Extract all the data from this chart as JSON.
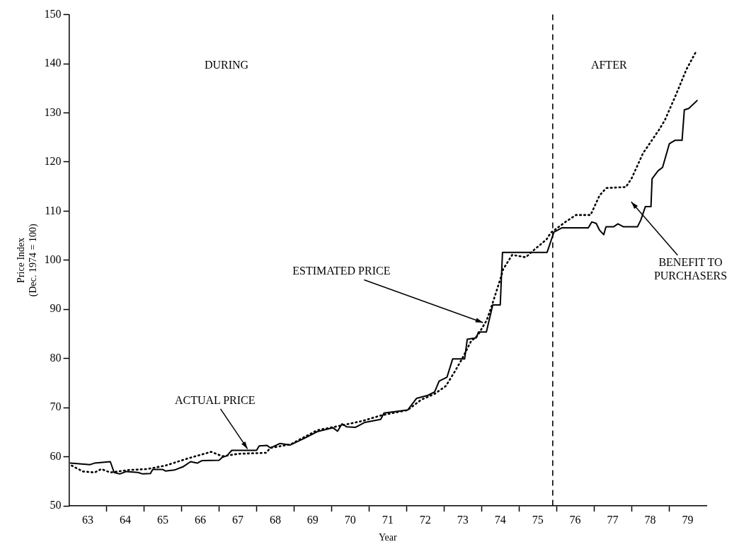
{
  "chart_data": {
    "type": "line",
    "xlabel": "Year",
    "ylabel": "Price Index\n(Dec. 1974 = 100)",
    "xlim": [
      63,
      80
    ],
    "xticks": [
      {
        "value": 63.5,
        "label": "63"
      },
      {
        "value": 64.5,
        "label": "64"
      },
      {
        "value": 65.5,
        "label": "65"
      },
      {
        "value": 66.5,
        "label": "66"
      },
      {
        "value": 67.5,
        "label": "67"
      },
      {
        "value": 68.5,
        "label": "68"
      },
      {
        "value": 69.5,
        "label": "69"
      },
      {
        "value": 70.5,
        "label": "70"
      },
      {
        "value": 71.5,
        "label": "71"
      },
      {
        "value": 72.5,
        "label": "72"
      },
      {
        "value": 73.5,
        "label": "73"
      },
      {
        "value": 74.5,
        "label": "74"
      },
      {
        "value": 75.5,
        "label": "75"
      },
      {
        "value": 76.5,
        "label": "76"
      },
      {
        "value": 77.5,
        "label": "77"
      },
      {
        "value": 78.5,
        "label": "78"
      },
      {
        "value": 79.5,
        "label": "79"
      },
      {
        "value": 64,
        "label": null
      },
      {
        "value": 65,
        "label": null
      },
      {
        "value": 66,
        "label": null
      },
      {
        "value": 67,
        "label": null
      },
      {
        "value": 68,
        "label": null
      },
      {
        "value": 69,
        "label": null
      },
      {
        "value": 70,
        "label": null
      },
      {
        "value": 71,
        "label": null
      },
      {
        "value": 72,
        "label": null
      },
      {
        "value": 73,
        "label": null
      },
      {
        "value": 74,
        "label": null
      },
      {
        "value": 75,
        "label": null
      },
      {
        "value": 76,
        "label": null
      },
      {
        "value": 77,
        "label": null
      },
      {
        "value": 78,
        "label": null
      },
      {
        "value": 79,
        "label": null
      }
    ],
    "ylim": [
      50,
      150
    ],
    "yticks": [
      50,
      60,
      70,
      80,
      90,
      100,
      110,
      120,
      130,
      140,
      150
    ],
    "grid": false,
    "legend": false,
    "marker": "none",
    "series": [
      {
        "color": "#000000",
        "line_style": "solid",
        "x": [
          63.04,
          63.56,
          63.68,
          64.1,
          64.2,
          64.35,
          64.53,
          64.84,
          64.96,
          65.17,
          65.23,
          65.5,
          65.57,
          65.81,
          66.05,
          66.24,
          66.42,
          66.54,
          67.0,
          67.09,
          67.21,
          67.34,
          68.0,
          68.07,
          68.28,
          68.37,
          68.62,
          68.9,
          69.26,
          69.62,
          70.04,
          70.16,
          70.28,
          70.4,
          70.64,
          70.89,
          71.31,
          71.4,
          72.03,
          72.27,
          72.57,
          72.75,
          72.87,
          73.08,
          73.23,
          73.55,
          73.62,
          73.86,
          73.92,
          74.13,
          74.3,
          74.5,
          74.56,
          75.75,
          75.93,
          76.15,
          76.85,
          76.94,
          77.06,
          77.15,
          77.26,
          77.32,
          77.52,
          77.64,
          77.79,
          78.03,
          78.16,
          78.25,
          78.37,
          78.52,
          78.55,
          78.71,
          78.83,
          79.01,
          79.16,
          79.35,
          79.41,
          79.53,
          79.75
        ],
        "values": [
          58.7,
          58.4,
          58.7,
          59.0,
          56.8,
          56.5,
          57.0,
          56.8,
          56.5,
          56.6,
          57.4,
          57.4,
          57.1,
          57.3,
          58.0,
          59.0,
          58.7,
          59.2,
          59.3,
          59.9,
          60.2,
          61.3,
          61.3,
          62.2,
          62.3,
          61.8,
          62.7,
          62.4,
          63.7,
          65.1,
          65.9,
          65.2,
          66.7,
          66.1,
          66.0,
          67.0,
          67.6,
          68.9,
          69.5,
          71.9,
          72.5,
          73.2,
          75.4,
          76.2,
          79.9,
          79.9,
          83.9,
          84.2,
          85.4,
          85.4,
          90.9,
          90.9,
          101.6,
          101.6,
          105.7,
          106.6,
          106.6,
          107.8,
          107.5,
          106.1,
          105.2,
          106.8,
          106.8,
          107.4,
          106.8,
          106.8,
          106.8,
          108.2,
          110.9,
          110.9,
          116.6,
          118.2,
          118.9,
          123.7,
          124.4,
          124.4,
          130.6,
          130.9,
          132.5
        ]
      },
      {
        "color": "#000000",
        "line_style": "dotted",
        "x": [
          63.07,
          63.37,
          63.68,
          63.86,
          64.1,
          64.59,
          65.08,
          65.57,
          66.18,
          66.79,
          67.09,
          67.52,
          68.25,
          68.37,
          68.9,
          69.62,
          70.22,
          70.83,
          71.31,
          72.03,
          72.39,
          72.75,
          73.05,
          73.3,
          73.48,
          73.72,
          73.9,
          74.14,
          74.26,
          74.5,
          74.58,
          74.82,
          75.18,
          75.43,
          75.73,
          75.85,
          76.24,
          76.52,
          76.91,
          77.15,
          77.33,
          77.85,
          78.0,
          78.31,
          78.74,
          78.89,
          79.16,
          79.47,
          79.71
        ],
        "values": [
          58.2,
          57.0,
          56.8,
          57.5,
          56.8,
          57.3,
          57.5,
          58.2,
          59.7,
          61.0,
          60.1,
          60.6,
          60.8,
          61.8,
          62.5,
          65.4,
          66.3,
          67.3,
          68.4,
          69.5,
          71.6,
          72.8,
          74.4,
          77.5,
          79.9,
          83.5,
          84.7,
          87.8,
          90.4,
          96.1,
          98.2,
          101.1,
          100.6,
          102.3,
          104.2,
          105.6,
          107.8,
          109.2,
          109.2,
          113.2,
          114.7,
          114.9,
          116.6,
          121.8,
          126.6,
          128.5,
          133.2,
          138.9,
          142.3
        ]
      }
    ],
    "ref_lines": [
      {
        "axis": "x",
        "value": 75.9,
        "color": "#000000",
        "line_style": "dashed"
      }
    ],
    "annotations": [
      "DURING",
      "AFTER",
      {
        "text": "ESTIMATED PRICE",
        "x": 74.04,
        "y": 87.3
      },
      {
        "text": "ACTUAL PRICE",
        "x": 67.76,
        "y": 61.6
      },
      "BENEFIT TO\nPURCHASERS"
    ]
  }
}
